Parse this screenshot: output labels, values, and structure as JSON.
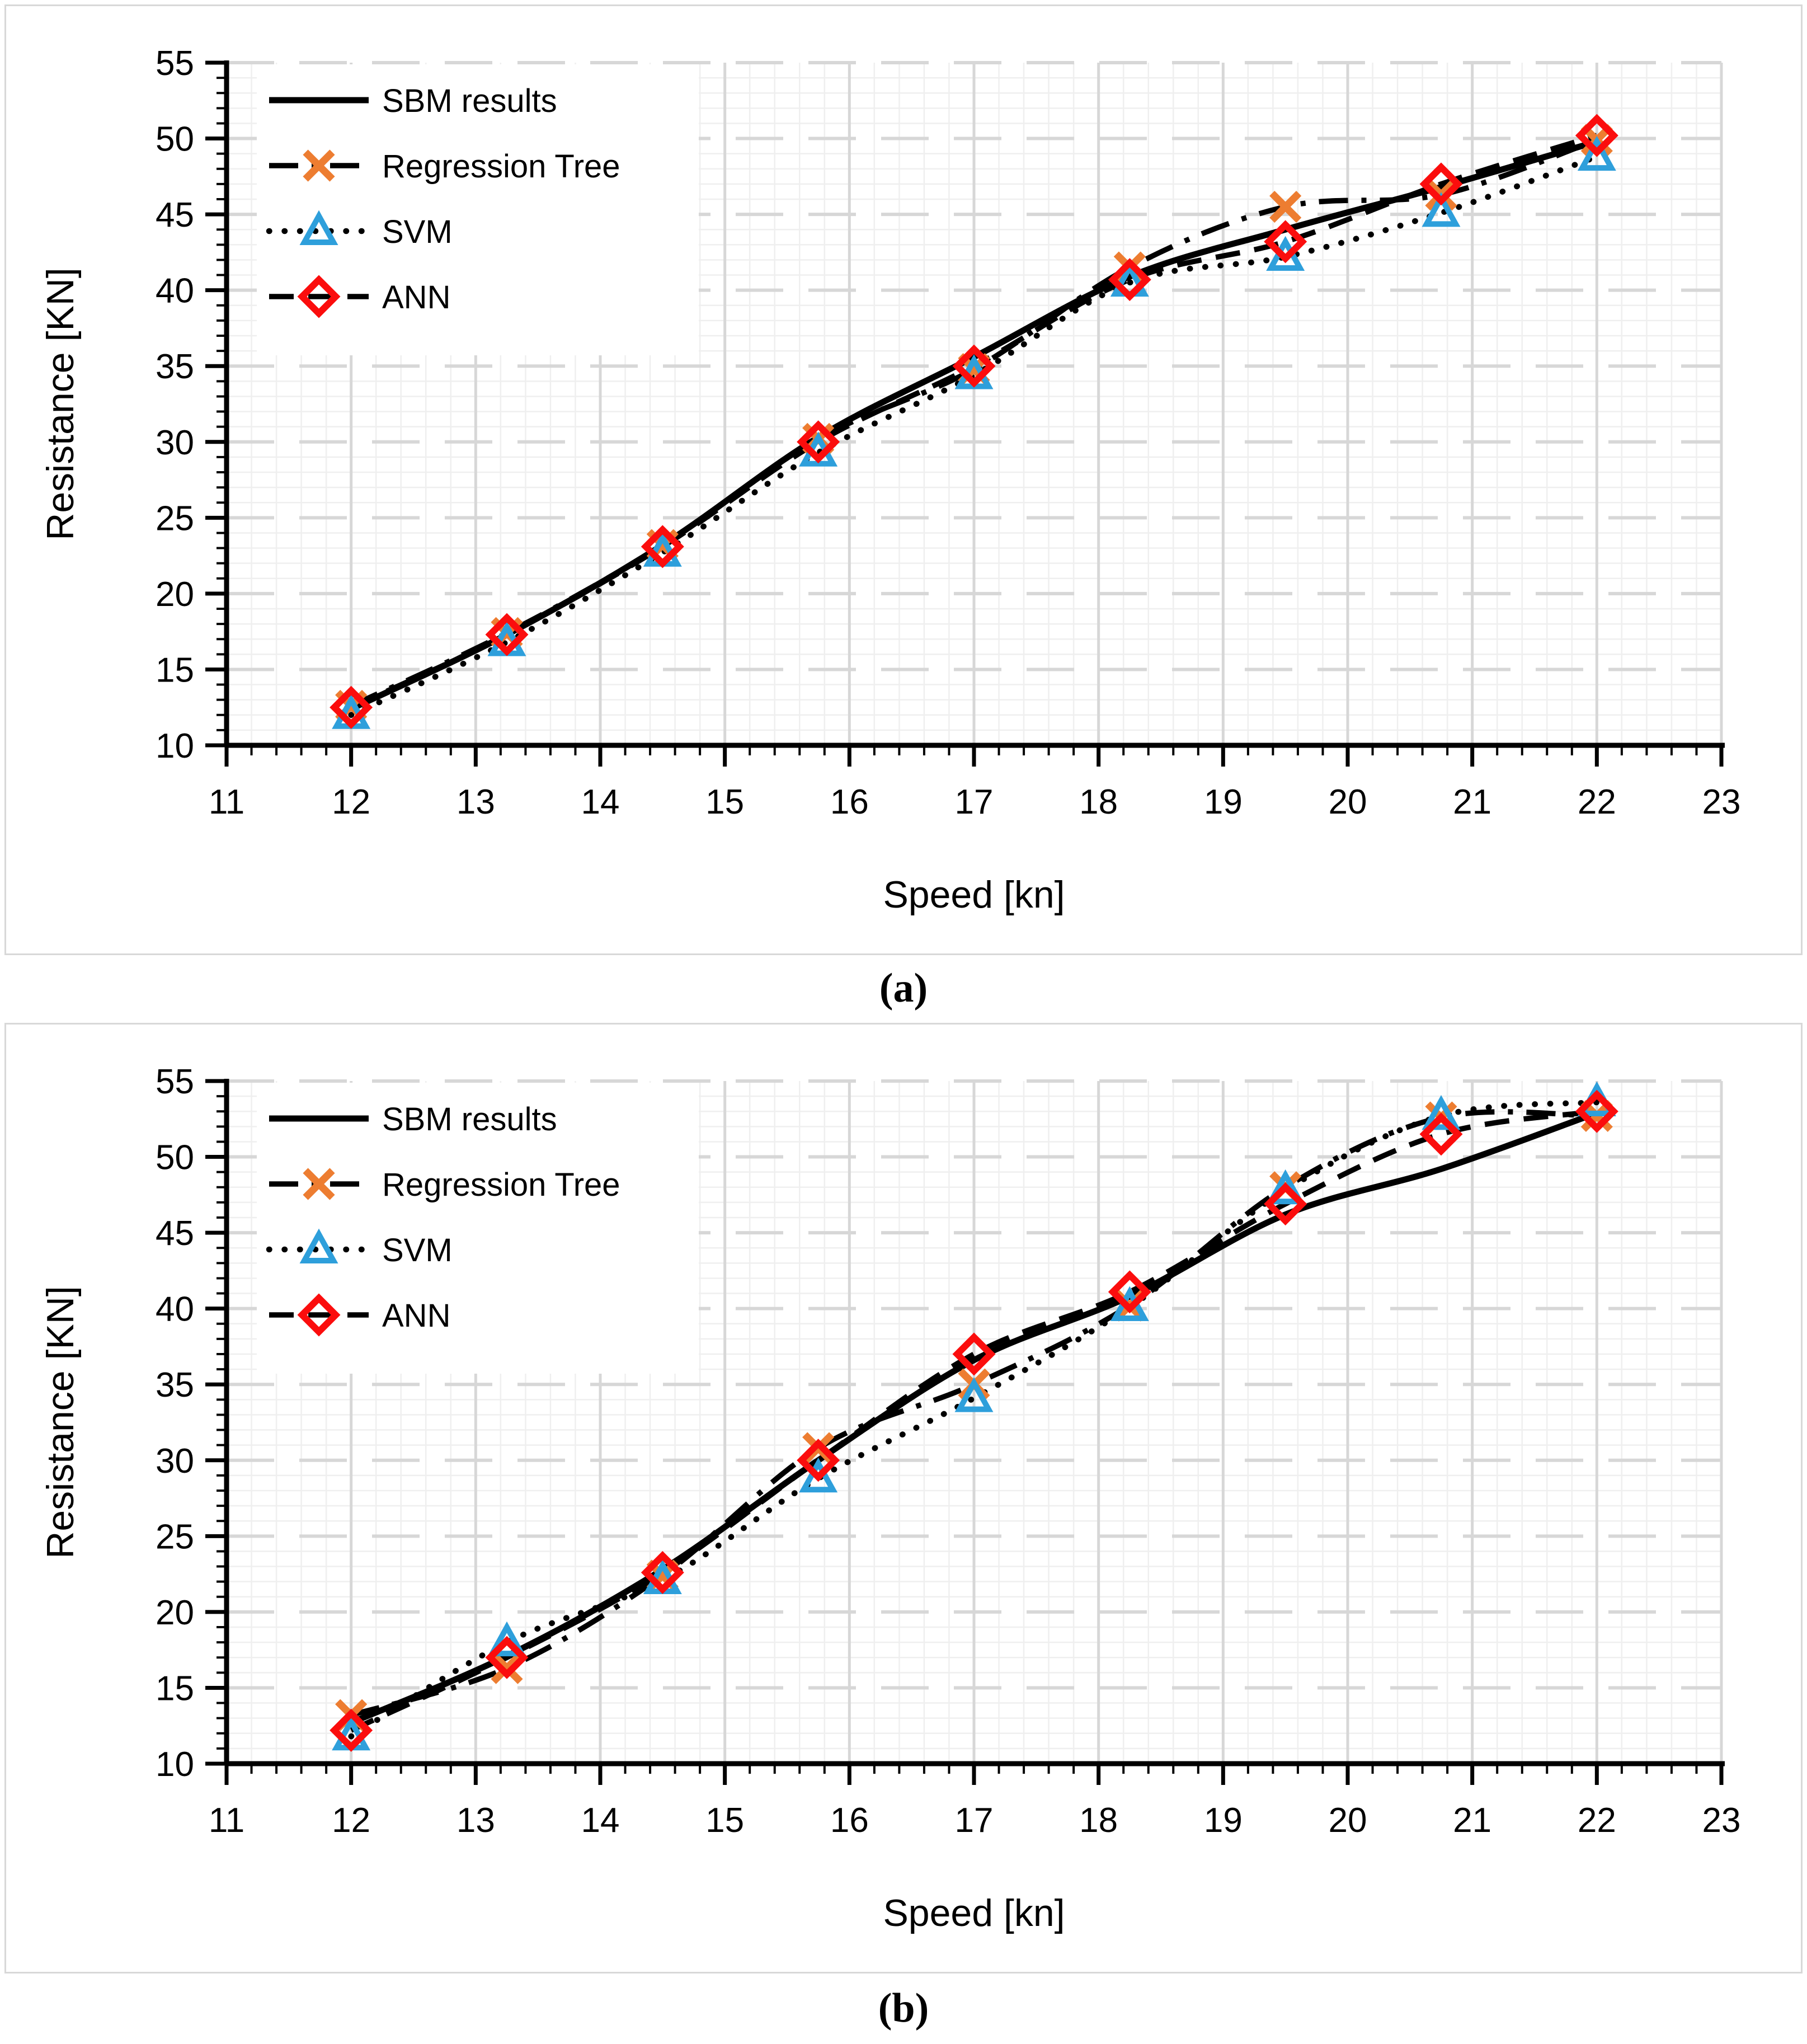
{
  "figure": {
    "caption_a": "(a)",
    "caption_b": "(b)"
  },
  "chart_data": [
    {
      "type": "line",
      "panel_label": "(a)",
      "caption": "(a)",
      "title": "",
      "xlabel": "Speed [kn]",
      "ylabel": "Resistance [KN]",
      "xlim": [
        11,
        23
      ],
      "ylim": [
        10,
        55
      ],
      "x_major_step": 1,
      "x_minor_step": 0.2,
      "y_major_step": 5,
      "y_minor_step": 1,
      "grid": true,
      "legend_position": "top-left",
      "axis_color": "#000000",
      "grid_major_color": "#d7d7d7",
      "grid_minor_color": "#efefef",
      "x": [
        12,
        13.25,
        14.5,
        15.75,
        17,
        18.25,
        19.5,
        20.75,
        22
      ],
      "series": [
        {
          "name": "SBM results",
          "line_style": "solid",
          "line_color": "#000000",
          "marker": "none",
          "marker_color": null,
          "values": [
            12.4,
            17.3,
            23.2,
            30.3,
            35.6,
            40.9,
            44.0,
            46.8,
            49.8
          ]
        },
        {
          "name": "Regression Tree",
          "line_style": "dash-dot",
          "line_color": "#000000",
          "marker": "x",
          "marker_color": "#ED7D31",
          "values": [
            12.6,
            17.4,
            23.2,
            30.2,
            34.8,
            41.5,
            45.5,
            46.3,
            49.9
          ]
        },
        {
          "name": "SVM",
          "line_style": "dotted",
          "line_color": "#000000",
          "marker": "triangle-up",
          "marker_color": "#2E9FDB",
          "values": [
            12.0,
            16.8,
            22.7,
            29.3,
            34.4,
            40.5,
            42.2,
            45.1,
            48.8
          ]
        },
        {
          "name": "ANN",
          "line_style": "dashed",
          "line_color": "#000000",
          "marker": "diamond",
          "marker_color": "#FB0D0D",
          "values": [
            12.5,
            17.3,
            23.1,
            30.0,
            35.0,
            40.7,
            43.2,
            47.0,
            50.2
          ]
        }
      ]
    },
    {
      "type": "line",
      "panel_label": "(b)",
      "caption": "(b)",
      "title": "",
      "xlabel": "Speed [kn]",
      "ylabel": "Resistance [KN]",
      "xlim": [
        11,
        23
      ],
      "ylim": [
        10,
        55
      ],
      "x_major_step": 1,
      "x_minor_step": 0.2,
      "y_major_step": 5,
      "y_minor_step": 1,
      "grid": true,
      "legend_position": "top-left",
      "axis_color": "#000000",
      "grid_major_color": "#d7d7d7",
      "grid_minor_color": "#efefef",
      "x": [
        12,
        13.25,
        14.5,
        15.75,
        17,
        18.25,
        19.5,
        20.75,
        22
      ],
      "series": [
        {
          "name": "SBM results",
          "line_style": "solid",
          "line_color": "#000000",
          "marker": "none",
          "marker_color": null,
          "values": [
            12.7,
            17.1,
            22.8,
            30.0,
            36.6,
            40.8,
            46.2,
            49.2,
            52.9
          ]
        },
        {
          "name": "Regression Tree",
          "line_style": "dash-dot",
          "line_color": "#000000",
          "marker": "x",
          "marker_color": "#ED7D31",
          "values": [
            13.2,
            16.3,
            22.4,
            30.8,
            35.0,
            40.2,
            48.0,
            52.6,
            52.7
          ]
        },
        {
          "name": "SVM",
          "line_style": "dotted",
          "line_color": "#000000",
          "marker": "triangle-up",
          "marker_color": "#2E9FDB",
          "values": [
            11.8,
            18.0,
            22.1,
            28.8,
            34.1,
            40.1,
            47.8,
            52.7,
            53.6
          ]
        },
        {
          "name": "ANN",
          "line_style": "dashed",
          "line_color": "#000000",
          "marker": "diamond",
          "marker_color": "#FB0D0D",
          "values": [
            12.2,
            17.0,
            22.6,
            30.0,
            37.0,
            41.1,
            46.9,
            51.5,
            53.0
          ]
        }
      ]
    }
  ]
}
